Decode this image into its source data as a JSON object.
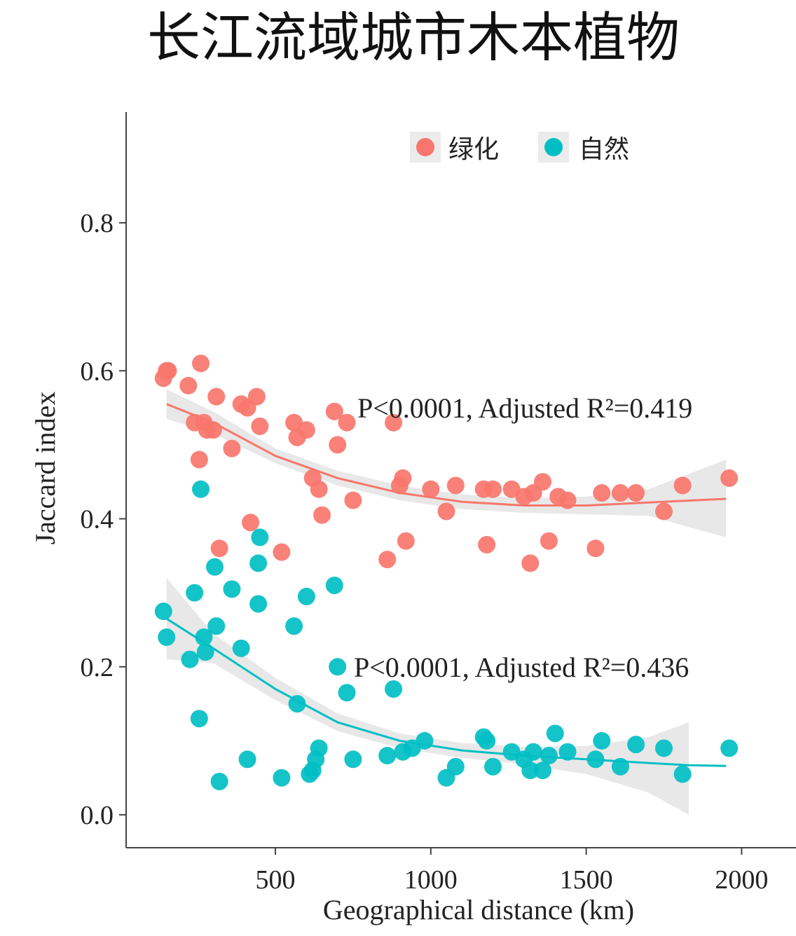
{
  "chart_data": {
    "type": "scatter",
    "title": "长江流域城市木本植物",
    "xlabel": "Geographical distance (km)",
    "ylabel": "Jaccard index",
    "xlim": [
      100,
      2050
    ],
    "ylim": [
      -0.04,
      0.95
    ],
    "xticks": [
      500,
      1000,
      1500,
      2000
    ],
    "yticks": [
      0.0,
      0.2,
      0.4,
      0.6,
      0.8
    ],
    "ytick_labels": [
      "0.0",
      "0.2",
      "0.4",
      "0.6",
      "0.8"
    ],
    "grid": false,
    "legend": {
      "position": "top-right",
      "entries": [
        "绿化",
        "自然"
      ]
    },
    "series": [
      {
        "name": "绿化",
        "color": "#F8766D",
        "annotation": {
          "text": "P<0.0001, Adjusted R²=0.419",
          "x": 1300,
          "y": 0.54
        },
        "points": [
          [
            140,
            0.59
          ],
          [
            150,
            0.6
          ],
          [
            155,
            0.6
          ],
          [
            220,
            0.58
          ],
          [
            240,
            0.53
          ],
          [
            260,
            0.61
          ],
          [
            255,
            0.48
          ],
          [
            270,
            0.53
          ],
          [
            280,
            0.52
          ],
          [
            300,
            0.52
          ],
          [
            310,
            0.565
          ],
          [
            320,
            0.36
          ],
          [
            360,
            0.495
          ],
          [
            390,
            0.555
          ],
          [
            410,
            0.55
          ],
          [
            420,
            0.395
          ],
          [
            440,
            0.565
          ],
          [
            450,
            0.525
          ],
          [
            520,
            0.355
          ],
          [
            560,
            0.53
          ],
          [
            570,
            0.51
          ],
          [
            600,
            0.52
          ],
          [
            620,
            0.455
          ],
          [
            640,
            0.44
          ],
          [
            650,
            0.405
          ],
          [
            690,
            0.545
          ],
          [
            700,
            0.5
          ],
          [
            730,
            0.53
          ],
          [
            750,
            0.425
          ],
          [
            860,
            0.345
          ],
          [
            880,
            0.53
          ],
          [
            900,
            0.445
          ],
          [
            910,
            0.455
          ],
          [
            920,
            0.37
          ],
          [
            1000,
            0.44
          ],
          [
            1050,
            0.41
          ],
          [
            1080,
            0.445
          ],
          [
            1170,
            0.44
          ],
          [
            1180,
            0.365
          ],
          [
            1200,
            0.44
          ],
          [
            1260,
            0.44
          ],
          [
            1300,
            0.43
          ],
          [
            1320,
            0.34
          ],
          [
            1330,
            0.435
          ],
          [
            1360,
            0.45
          ],
          [
            1380,
            0.37
          ],
          [
            1410,
            0.43
          ],
          [
            1440,
            0.425
          ],
          [
            1530,
            0.36
          ],
          [
            1550,
            0.435
          ],
          [
            1610,
            0.435
          ],
          [
            1660,
            0.435
          ],
          [
            1750,
            0.41
          ],
          [
            1810,
            0.445
          ],
          [
            1960,
            0.455
          ]
        ],
        "fit": [
          [
            150,
            0.555
          ],
          [
            300,
            0.53
          ],
          [
            500,
            0.485
          ],
          [
            700,
            0.455
          ],
          [
            900,
            0.435
          ],
          [
            1100,
            0.423
          ],
          [
            1300,
            0.418
          ],
          [
            1500,
            0.418
          ],
          [
            1700,
            0.422
          ],
          [
            1950,
            0.427
          ]
        ],
        "ci_upper": [
          [
            150,
            0.575
          ],
          [
            300,
            0.545
          ],
          [
            500,
            0.495
          ],
          [
            700,
            0.465
          ],
          [
            900,
            0.445
          ],
          [
            1100,
            0.433
          ],
          [
            1300,
            0.428
          ],
          [
            1500,
            0.43
          ],
          [
            1700,
            0.44
          ],
          [
            1950,
            0.48
          ]
        ],
        "ci_lower": [
          [
            150,
            0.535
          ],
          [
            300,
            0.515
          ],
          [
            500,
            0.475
          ],
          [
            700,
            0.445
          ],
          [
            900,
            0.425
          ],
          [
            1100,
            0.413
          ],
          [
            1300,
            0.408
          ],
          [
            1500,
            0.406
          ],
          [
            1700,
            0.404
          ],
          [
            1950,
            0.375
          ]
        ]
      },
      {
        "name": "自然",
        "color": "#00BFC4",
        "annotation": {
          "text": "P<0.0001, Adjusted R²=0.436",
          "x": 1300,
          "y": 0.19
        },
        "points": [
          [
            140,
            0.275
          ],
          [
            150,
            0.24
          ],
          [
            225,
            0.21
          ],
          [
            240,
            0.3
          ],
          [
            255,
            0.13
          ],
          [
            260,
            0.44
          ],
          [
            270,
            0.24
          ],
          [
            275,
            0.22
          ],
          [
            305,
            0.335
          ],
          [
            310,
            0.255
          ],
          [
            320,
            0.045
          ],
          [
            360,
            0.305
          ],
          [
            390,
            0.225
          ],
          [
            410,
            0.075
          ],
          [
            445,
            0.34
          ],
          [
            450,
            0.375
          ],
          [
            445,
            0.285
          ],
          [
            520,
            0.05
          ],
          [
            560,
            0.255
          ],
          [
            570,
            0.15
          ],
          [
            600,
            0.295
          ],
          [
            610,
            0.055
          ],
          [
            620,
            0.06
          ],
          [
            630,
            0.075
          ],
          [
            640,
            0.09
          ],
          [
            690,
            0.31
          ],
          [
            700,
            0.2
          ],
          [
            730,
            0.165
          ],
          [
            750,
            0.075
          ],
          [
            860,
            0.08
          ],
          [
            880,
            0.17
          ],
          [
            910,
            0.085
          ],
          [
            940,
            0.09
          ],
          [
            980,
            0.1
          ],
          [
            1050,
            0.05
          ],
          [
            1080,
            0.065
          ],
          [
            1170,
            0.105
          ],
          [
            1180,
            0.1
          ],
          [
            1200,
            0.065
          ],
          [
            1260,
            0.085
          ],
          [
            1300,
            0.075
          ],
          [
            1320,
            0.06
          ],
          [
            1330,
            0.085
          ],
          [
            1360,
            0.06
          ],
          [
            1380,
            0.08
          ],
          [
            1400,
            0.11
          ],
          [
            1440,
            0.085
          ],
          [
            1530,
            0.075
          ],
          [
            1550,
            0.1
          ],
          [
            1610,
            0.065
          ],
          [
            1660,
            0.095
          ],
          [
            1750,
            0.09
          ],
          [
            1810,
            0.055
          ],
          [
            1960,
            0.09
          ]
        ],
        "fit": [
          [
            150,
            0.265
          ],
          [
            300,
            0.225
          ],
          [
            500,
            0.17
          ],
          [
            700,
            0.125
          ],
          [
            900,
            0.1
          ],
          [
            1100,
            0.087
          ],
          [
            1300,
            0.08
          ],
          [
            1500,
            0.075
          ],
          [
            1700,
            0.07
          ],
          [
            1830,
            0.067
          ],
          [
            1950,
            0.066
          ]
        ],
        "ci_upper": [
          [
            150,
            0.32
          ],
          [
            300,
            0.245
          ],
          [
            500,
            0.185
          ],
          [
            700,
            0.137
          ],
          [
            900,
            0.11
          ],
          [
            1100,
            0.097
          ],
          [
            1300,
            0.092
          ],
          [
            1500,
            0.093
          ],
          [
            1700,
            0.105
          ],
          [
            1830,
            0.125
          ]
        ],
        "ci_lower": [
          [
            150,
            0.21
          ],
          [
            300,
            0.205
          ],
          [
            500,
            0.155
          ],
          [
            700,
            0.113
          ],
          [
            900,
            0.09
          ],
          [
            1100,
            0.077
          ],
          [
            1300,
            0.068
          ],
          [
            1500,
            0.055
          ],
          [
            1700,
            0.03
          ],
          [
            1830,
            0.0
          ]
        ]
      }
    ]
  }
}
